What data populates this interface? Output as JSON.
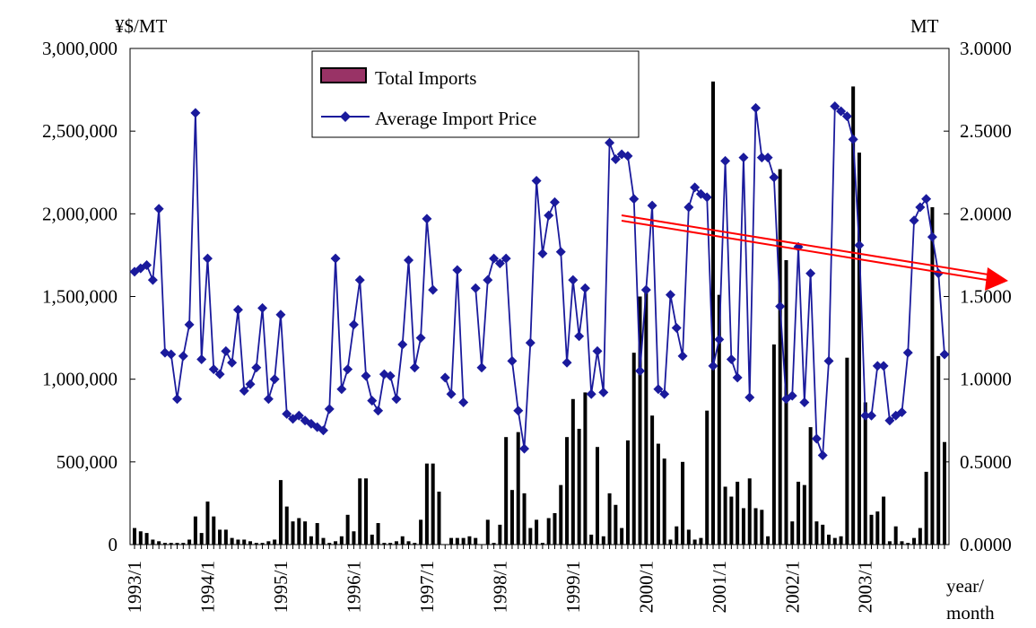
{
  "chart_data": {
    "type": "bar-line",
    "y_label": "¥$/MT",
    "y2_label": "MT",
    "x_label_lines": [
      "year/",
      "month"
    ],
    "categories": [
      "1993/1",
      null,
      null,
      null,
      null,
      null,
      null,
      null,
      null,
      null,
      null,
      null,
      "1994/1",
      null,
      null,
      null,
      null,
      null,
      null,
      null,
      null,
      null,
      null,
      null,
      "1995/1",
      null,
      null,
      null,
      null,
      null,
      null,
      null,
      null,
      null,
      null,
      null,
      "1996/1",
      null,
      null,
      null,
      null,
      null,
      null,
      null,
      null,
      null,
      null,
      null,
      "1997/1",
      null,
      null,
      null,
      null,
      null,
      null,
      null,
      null,
      null,
      null,
      null,
      "1998/1",
      null,
      null,
      null,
      null,
      null,
      null,
      null,
      null,
      null,
      null,
      null,
      "1999/1",
      null,
      null,
      null,
      null,
      null,
      null,
      null,
      null,
      null,
      null,
      null,
      "2000/1",
      null,
      null,
      null,
      null,
      null,
      null,
      null,
      null,
      null,
      null,
      null,
      "2001/1",
      null,
      null,
      null,
      null,
      null,
      null,
      null,
      null,
      null,
      null,
      null,
      "2002/1",
      null,
      null,
      null,
      null,
      null,
      null,
      null,
      null,
      null,
      null,
      null,
      "2003/1",
      null,
      null,
      null,
      null,
      null,
      null,
      null,
      null,
      null,
      null,
      null,
      null,
      null
    ],
    "ylim": [
      0,
      3000000
    ],
    "yticks": [
      0,
      {
        "value": 500000,
        "label": "500,000"
      },
      {
        "value": 1000000,
        "label": "1,000,000"
      },
      {
        "value": 1500000,
        "label": "1,500,000"
      },
      {
        "value": 2000000,
        "label": "2,000,000"
      },
      {
        "value": 2500000,
        "label": "2,500,000"
      },
      {
        "value": 3000000,
        "label": "3,000,000"
      }
    ],
    "y2lim": [
      0,
      3
    ],
    "y2ticks": [
      {
        "value": 0,
        "label": "0.0000"
      },
      {
        "value": 0.5,
        "label": "0.5000"
      },
      {
        "value": 1,
        "label": "1.0000"
      },
      {
        "value": 1.5,
        "label": "1.5000"
      },
      {
        "value": 2,
        "label": "2.0000"
      },
      {
        "value": 2.5,
        "label": "2.5000"
      },
      {
        "value": 3,
        "label": "3.0000"
      }
    ],
    "series": [
      {
        "name": "Total Imports",
        "kind": "bar",
        "color": "#000000",
        "legend_color": "#993366",
        "values": [
          100000,
          80000,
          70000,
          30000,
          20000,
          10000,
          10000,
          10000,
          10000,
          30000,
          170000,
          70000,
          260000,
          170000,
          90000,
          90000,
          40000,
          30000,
          30000,
          20000,
          10000,
          10000,
          20000,
          30000,
          390000,
          230000,
          140000,
          160000,
          140000,
          50000,
          130000,
          40000,
          10000,
          20000,
          50000,
          180000,
          80000,
          400000,
          400000,
          60000,
          130000,
          10000,
          10000,
          20000,
          50000,
          20000,
          10000,
          150000,
          490000,
          490000,
          320000,
          0,
          40000,
          40000,
          40000,
          50000,
          40000,
          0,
          150000,
          10000,
          120000,
          650000,
          330000,
          680000,
          310000,
          100000,
          150000,
          10000,
          160000,
          190000,
          360000,
          650000,
          880000,
          700000,
          920000,
          60000,
          590000,
          50000,
          310000,
          240000,
          100000,
          630000,
          1160000,
          1500000,
          1530000,
          780000,
          610000,
          520000,
          30000,
          110000,
          500000,
          90000,
          30000,
          40000,
          810000,
          2800000,
          1510000,
          350000,
          290000,
          380000,
          220000,
          400000,
          220000,
          210000,
          50000,
          1210000,
          2270000,
          1720000,
          140000,
          380000,
          360000,
          710000,
          140000,
          120000,
          60000,
          40000,
          50000,
          1130000,
          2770000,
          2370000,
          860000,
          180000,
          200000,
          290000,
          20000,
          110000,
          20000,
          10000,
          40000,
          100000,
          440000,
          2040000,
          1140000,
          620000
        ]
      },
      {
        "name": "Average Import Price",
        "kind": "line",
        "axis": "y2",
        "color": "#1a1a9c",
        "values": [
          1.65,
          1.67,
          1.69,
          1.6,
          2.03,
          1.16,
          1.15,
          0.88,
          1.14,
          1.33,
          2.61,
          1.12,
          1.73,
          1.06,
          1.03,
          1.17,
          1.1,
          1.42,
          0.93,
          0.97,
          1.07,
          1.43,
          0.88,
          1.0,
          1.39,
          0.79,
          0.76,
          0.78,
          0.75,
          0.73,
          0.71,
          0.69,
          0.82,
          1.73,
          0.94,
          1.06,
          1.33,
          1.6,
          1.02,
          0.87,
          0.81,
          1.03,
          1.02,
          0.88,
          1.21,
          1.72,
          1.07,
          1.25,
          1.97,
          1.54,
          null,
          1.01,
          0.91,
          1.66,
          0.86,
          null,
          1.55,
          1.07,
          1.6,
          1.73,
          1.7,
          1.73,
          1.11,
          0.81,
          0.58,
          1.22,
          2.2,
          1.76,
          1.99,
          2.07,
          1.77,
          1.1,
          1.6,
          1.26,
          1.55,
          0.91,
          1.17,
          0.92,
          2.43,
          2.33,
          2.36,
          2.35,
          2.09,
          1.05,
          1.54,
          2.05,
          0.94,
          0.91,
          1.51,
          1.31,
          1.14,
          2.04,
          2.16,
          2.12,
          2.1,
          1.08,
          1.24,
          2.32,
          1.12,
          1.01,
          2.34,
          0.89,
          2.64,
          2.34,
          2.34,
          2.22,
          1.44,
          0.88,
          0.9,
          1.8,
          0.86,
          1.64,
          0.64,
          0.54,
          1.11,
          2.65,
          2.62,
          2.59,
          2.45,
          1.81,
          0.78,
          0.78,
          1.08,
          1.08,
          0.75,
          0.78,
          0.8,
          1.16,
          1.96,
          2.04,
          2.09,
          1.86,
          1.64,
          1.15
        ]
      }
    ]
  }
}
